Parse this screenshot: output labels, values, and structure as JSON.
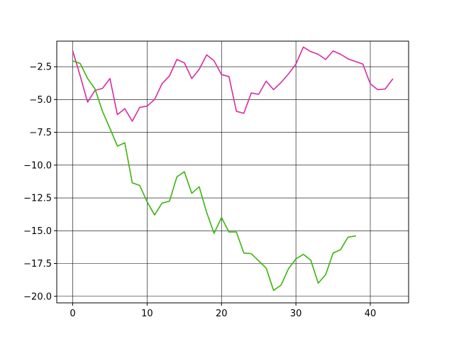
{
  "chart_data": {
    "type": "line",
    "title": "",
    "xlabel": "",
    "ylabel": "",
    "xlim": [
      -2.15,
      45.15
    ],
    "ylim": [
      -20.5,
      -0.55
    ],
    "xticks": [
      0,
      10,
      20,
      30,
      40
    ],
    "yticks": [
      -20.0,
      -17.5,
      -15.0,
      -12.5,
      -10.0,
      -7.5,
      -5.0,
      -2.5
    ],
    "xtick_labels": [
      "0",
      "10",
      "20",
      "30",
      "40"
    ],
    "ytick_labels": [
      "−20.0",
      "−17.5",
      "−15.0",
      "−12.5",
      "−10.0",
      "−7.5",
      "−5.0",
      "−2.5"
    ],
    "grid": true,
    "legend": "none",
    "series": [
      {
        "color": "#d62ca0",
        "x": [
          0,
          1,
          2,
          3,
          4,
          5,
          6,
          7,
          8,
          9,
          10,
          11,
          12,
          13,
          14,
          15,
          16,
          17,
          18,
          19,
          20,
          21,
          22,
          23,
          24,
          25,
          26,
          27,
          28,
          29,
          30,
          31,
          32,
          33,
          34,
          35,
          36,
          37,
          38,
          39,
          40,
          41,
          42,
          43
        ],
        "y": [
          -1.3,
          -3.2,
          -5.2,
          -4.3,
          -4.15,
          -3.4,
          -6.15,
          -5.7,
          -6.65,
          -5.6,
          -5.5,
          -5.0,
          -3.8,
          -3.2,
          -1.95,
          -2.2,
          -3.4,
          -2.7,
          -1.6,
          -2.05,
          -3.1,
          -3.25,
          -5.9,
          -6.05,
          -4.5,
          -4.6,
          -3.6,
          -4.25,
          -3.7,
          -3.05,
          -2.3,
          -1.0,
          -1.35,
          -1.55,
          -1.95,
          -1.3,
          -1.55,
          -1.9,
          -2.1,
          -2.3,
          -3.8,
          -4.25,
          -4.2,
          -3.45
        ]
      },
      {
        "color": "#3cb30e",
        "x": [
          0,
          1,
          2,
          3,
          4,
          5,
          6,
          7,
          8,
          9,
          10,
          11,
          12,
          13,
          14,
          15,
          16,
          17,
          18,
          19,
          20,
          21,
          22,
          23,
          24,
          25,
          26,
          27,
          28,
          29,
          30,
          31,
          32,
          33,
          34,
          35,
          36,
          37,
          38
        ],
        "y": [
          -2.05,
          -2.25,
          -3.4,
          -4.2,
          -5.9,
          -7.2,
          -8.55,
          -8.3,
          -11.35,
          -11.55,
          -12.8,
          -13.8,
          -12.9,
          -12.75,
          -10.9,
          -10.5,
          -12.15,
          -11.65,
          -13.6,
          -15.2,
          -14.0,
          -15.1,
          -15.1,
          -16.7,
          -16.75,
          -17.3,
          -17.85,
          -19.55,
          -19.15,
          -17.9,
          -17.15,
          -16.8,
          -17.25,
          -19.0,
          -18.35,
          -16.7,
          -16.45,
          -15.5,
          -15.4
        ]
      }
    ]
  }
}
